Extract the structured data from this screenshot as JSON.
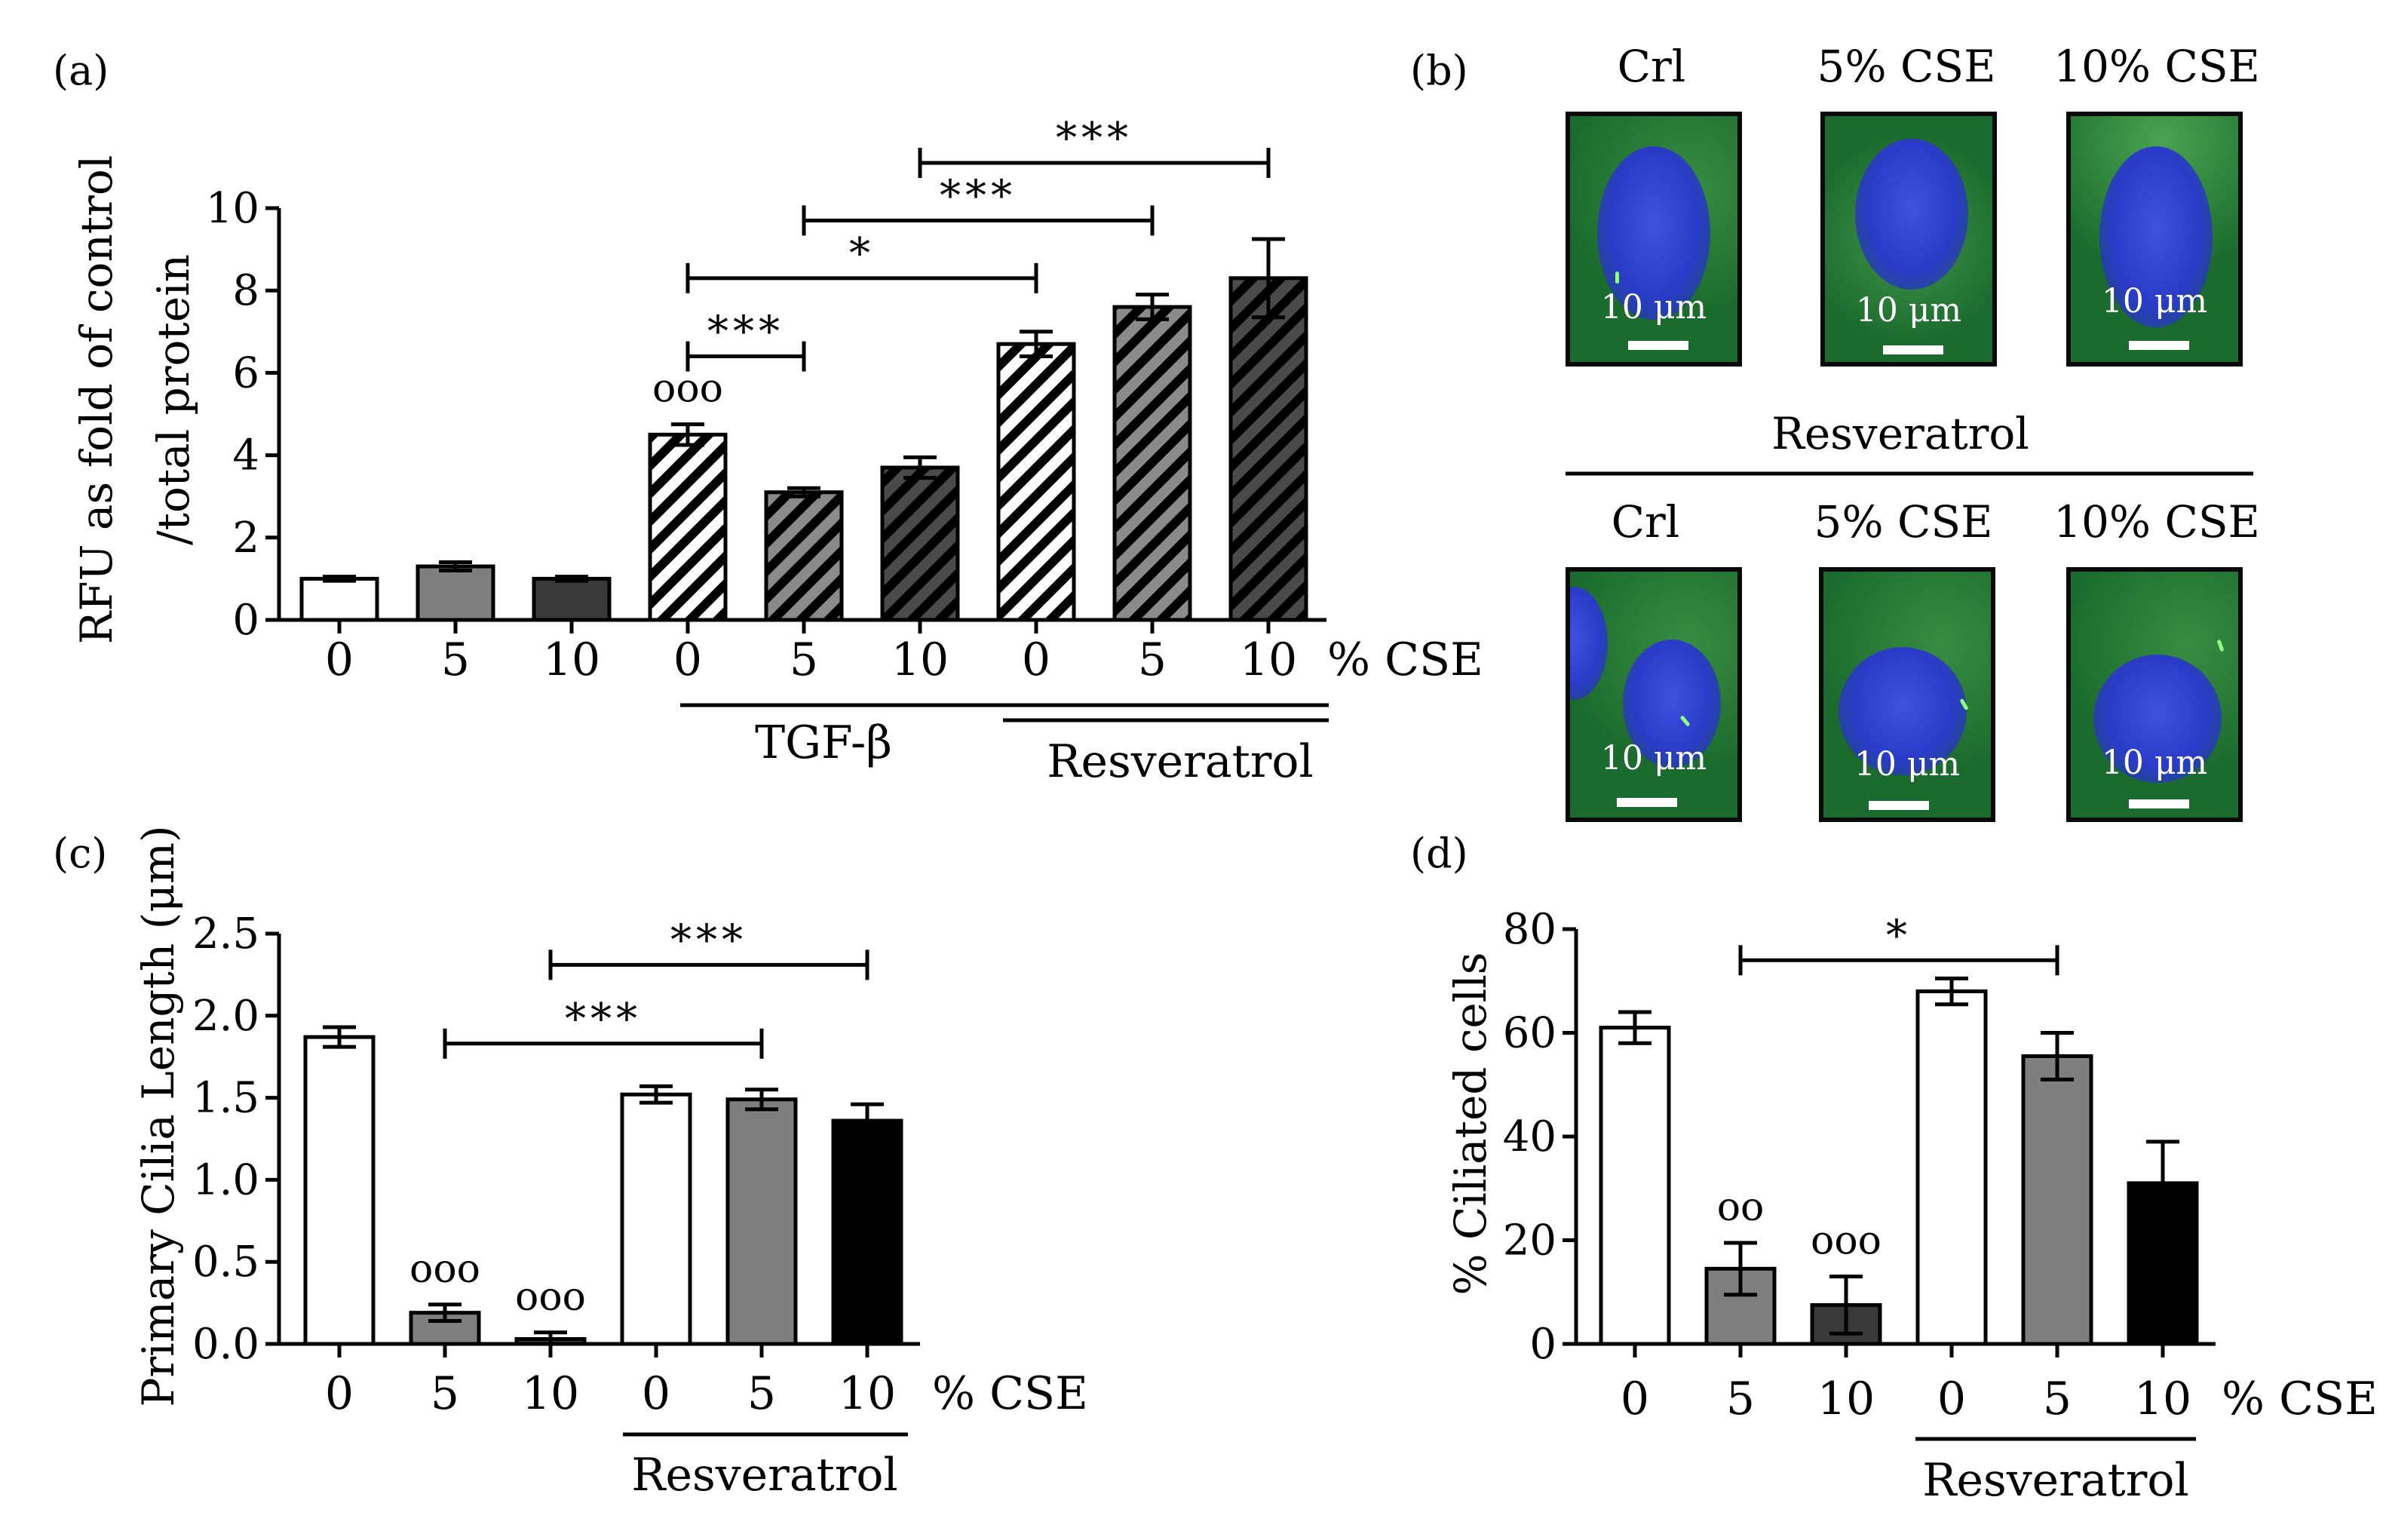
{
  "panel_letters": {
    "a": "(a)",
    "b": "(b)",
    "c": "(c)",
    "d": "(d)"
  },
  "colors": {
    "white": "#ffffff",
    "gray": "#7f7f7f",
    "darkgray": "#3a3a3a",
    "black": "#000000"
  },
  "chart_data": [
    {
      "id": "a",
      "type": "bar",
      "ylabel_line1": "RFU as fold of control",
      "ylabel_line2": "/total protein",
      "ylim": [
        0,
        10
      ],
      "yticks": [
        "0",
        "2",
        "4",
        "6",
        "8",
        "10"
      ],
      "categories": [
        "0",
        "5",
        "10",
        "0",
        "5",
        "10",
        "0",
        "5",
        "10"
      ],
      "axis_suffix": "% CSE",
      "values": [
        1.0,
        1.3,
        1.0,
        4.5,
        3.1,
        3.7,
        6.7,
        7.6,
        8.3
      ],
      "errors": [
        0.05,
        0.1,
        0.05,
        0.25,
        0.1,
        0.25,
        0.3,
        0.3,
        0.95
      ],
      "fills": [
        "white",
        "gray",
        "darkgray",
        "hatch-white",
        "hatch-gray",
        "hatch-dark",
        "hatch-white",
        "hatch-gray",
        "hatch-dark"
      ],
      "bar_annotations": [
        {
          "bar": 3,
          "text": "ooo"
        }
      ],
      "brackets": [
        {
          "from": 3,
          "to": 4,
          "y": 6.4,
          "text": "***"
        },
        {
          "from": 3,
          "to": 6,
          "y": 8.3,
          "text": "*"
        },
        {
          "from": 4,
          "to": 7,
          "y": 9.7,
          "text": "***"
        },
        {
          "from": 5,
          "to": 8,
          "y": 11.1,
          "text": "***"
        }
      ],
      "group_labels": [
        {
          "text": "TGF-β",
          "from": 3,
          "to": 8
        },
        {
          "text": "Resveratrol",
          "from": 6,
          "to": 8
        }
      ]
    },
    {
      "id": "c",
      "type": "bar",
      "ylabel": "Primary Cilia Length (μm)",
      "ylim": [
        0,
        2.5
      ],
      "yticks": [
        "0.0",
        "0.5",
        "1.0",
        "1.5",
        "2.0",
        "2.5"
      ],
      "categories": [
        "0",
        "5",
        "10",
        "0",
        "5",
        "10"
      ],
      "axis_suffix": "% CSE",
      "values": [
        1.87,
        0.19,
        0.03,
        1.52,
        1.49,
        1.36
      ],
      "errors": [
        0.06,
        0.05,
        0.04,
        0.05,
        0.06,
        0.1
      ],
      "fills": [
        "white",
        "gray",
        "darkgray",
        "white",
        "gray",
        "black"
      ],
      "bar_annotations": [
        {
          "bar": 1,
          "text": "ooo"
        },
        {
          "bar": 2,
          "text": "ooo"
        }
      ],
      "brackets": [
        {
          "from": 1,
          "to": 4,
          "y": 1.83,
          "text": "***"
        },
        {
          "from": 2,
          "to": 5,
          "y": 2.31,
          "text": "***"
        }
      ],
      "group_labels": [
        {
          "text": "Resveratrol",
          "from": 3,
          "to": 5
        }
      ]
    },
    {
      "id": "d",
      "type": "bar",
      "ylabel": "% Ciliated cells",
      "ylim": [
        0,
        80
      ],
      "yticks": [
        "0",
        "20",
        "40",
        "60",
        "80"
      ],
      "categories": [
        "0",
        "5",
        "10",
        "0",
        "5",
        "10"
      ],
      "axis_suffix": "% CSE",
      "values": [
        61,
        14.5,
        7.5,
        68,
        55.5,
        31
      ],
      "errors": [
        3,
        5,
        5.5,
        2.5,
        4.5,
        8
      ],
      "fills": [
        "white",
        "gray",
        "darkgray",
        "white",
        "gray",
        "black"
      ],
      "bar_annotations": [
        {
          "bar": 1,
          "text": "oo"
        },
        {
          "bar": 2,
          "text": "ooo"
        }
      ],
      "brackets": [
        {
          "from": 1,
          "to": 4,
          "y": 74,
          "text": "*"
        }
      ],
      "group_labels": [
        {
          "text": "Resveratrol",
          "from": 3,
          "to": 5
        }
      ]
    }
  ],
  "micrographs": {
    "top_labels": [
      "Crl",
      "5% CSE",
      "10% CSE"
    ],
    "bottom_labels": [
      "Crl",
      "5% CSE",
      "10% CSE"
    ],
    "group_label": "Resveratrol",
    "scale_bar": "10 μm"
  }
}
